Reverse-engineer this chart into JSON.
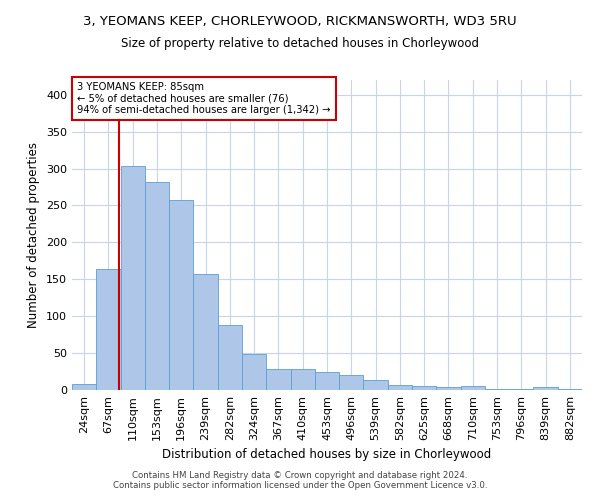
{
  "title": "3, YEOMANS KEEP, CHORLEYWOOD, RICKMANSWORTH, WD3 5RU",
  "subtitle": "Size of property relative to detached houses in Chorleywood",
  "xlabel": "Distribution of detached houses by size in Chorleywood",
  "ylabel": "Number of detached properties",
  "footer_line1": "Contains HM Land Registry data © Crown copyright and database right 2024.",
  "footer_line2": "Contains public sector information licensed under the Open Government Licence v3.0.",
  "annotation_line1": "3 YEOMANS KEEP: 85sqm",
  "annotation_line2": "← 5% of detached houses are smaller (76)",
  "annotation_line3": "94% of semi-detached houses are larger (1,342) →",
  "bar_color": "#aec6e8",
  "bar_edge_color": "#5a9fd4",
  "vline_color": "#cc0000",
  "annotation_box_color": "#cc0000",
  "background_color": "#ffffff",
  "grid_color": "#c8d4e8",
  "categories": [
    "24sqm",
    "67sqm",
    "110sqm",
    "153sqm",
    "196sqm",
    "239sqm",
    "282sqm",
    "324sqm",
    "367sqm",
    "410sqm",
    "453sqm",
    "496sqm",
    "539sqm",
    "582sqm",
    "625sqm",
    "668sqm",
    "710sqm",
    "753sqm",
    "796sqm",
    "839sqm",
    "882sqm"
  ],
  "values": [
    8,
    164,
    303,
    282,
    258,
    157,
    88,
    49,
    29,
    29,
    25,
    21,
    13,
    7,
    5,
    4,
    5,
    2,
    2,
    4,
    2
  ],
  "ylim": [
    0,
    420
  ],
  "yticks": [
    0,
    50,
    100,
    150,
    200,
    250,
    300,
    350,
    400
  ],
  "vline_x_index": 1.5,
  "figsize": [
    6.0,
    5.0
  ],
  "dpi": 100
}
